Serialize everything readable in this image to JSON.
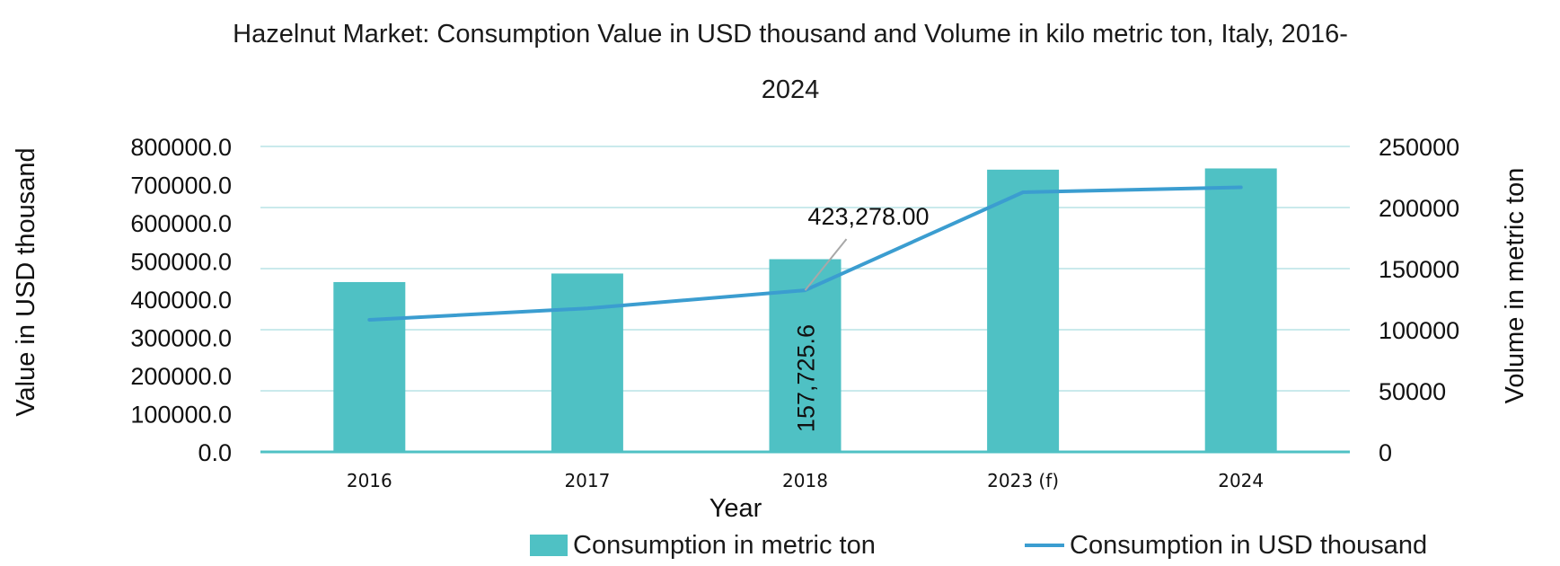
{
  "title": {
    "line1": "Hazelnut Market: Consumption Value in USD thousand and Volume in kilo metric ton, Italy, 2016-",
    "line2": "2024"
  },
  "colors": {
    "bar": "#4fc1c4",
    "line": "#3b9dd0",
    "grid": "#b8e4e6",
    "baseline": "#4fc1c4",
    "annotation_leader": "#a8a8a8"
  },
  "chart_data": {
    "type": "bar",
    "categories": [
      "2016",
      "2017",
      "2018",
      "2023 (f)",
      "2024"
    ],
    "xlabel": "Year",
    "ylabel_left": "Value in USD thousand",
    "ylabel_right": "Volume in metric ton",
    "y_left_ticks": [
      "800000.0",
      "700000.0",
      "600000.0",
      "500000.0",
      "400000.0",
      "300000.0",
      "200000.0",
      "100000.0",
      "0.0"
    ],
    "y_right_ticks": [
      "250000",
      "200000",
      "150000",
      "100000",
      "50000",
      "0"
    ],
    "ylim_left": [
      0,
      800000
    ],
    "ylim_right": [
      0,
      250000
    ],
    "grid": true,
    "legend_position": "bottom",
    "series": [
      {
        "name": "Consumption in metric ton",
        "type": "bar",
        "axis": "right",
        "values": [
          139000,
          146000,
          157725.6,
          231000,
          232000
        ]
      },
      {
        "name": "Consumption in USD thousand",
        "type": "line",
        "axis": "left",
        "values": [
          346000,
          376000,
          423278,
          680000,
          693000
        ]
      }
    ],
    "annotations": [
      {
        "text": "423,278.00",
        "series": 1,
        "index": 2
      },
      {
        "text": "157,725.6",
        "series": 0,
        "index": 2,
        "orientation": "vertical"
      }
    ]
  }
}
